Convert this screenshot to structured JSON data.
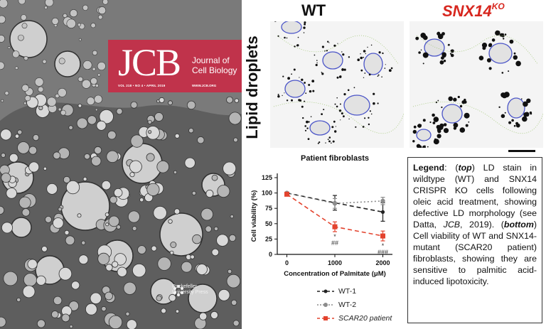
{
  "cover": {
    "logo": "JCB",
    "journal_name": "Journal of Cell Biology",
    "issue": "VOL 218 • NO 4 • APRIL 2019",
    "website": "WWW.JCB.ORG",
    "publisher": "Rockefeller University Press",
    "brand_color": "#c0334b"
  },
  "micrographs": {
    "label_wt": "WT",
    "label_ko": "SNX14",
    "label_ko_sup": "KO",
    "row_label": "Lipid droplets",
    "ko_color": "#d7261e"
  },
  "legend_text": {
    "p1": "Legend",
    "p2": ": (",
    "p3": "top",
    "p4": ") LD stain in wildtype (WT) and SNX14 CRISPR KO cells following oleic acid treatment, showing defective LD morphology (see Datta, ",
    "p5": "JCB",
    "p6": ", 2019). (",
    "p7": "bottom",
    "p8": ") Cell viability of WT and SNX14-mutant (SCAR20 patient) fibroblasts, showing they are sensitive to palmitic acid-induced lipotoxicity."
  },
  "chart_data": {
    "type": "line",
    "title": "Patient fibroblasts",
    "xlabel": "Concentration of Palmitate (μM)",
    "ylabel": "Cell viability (%)",
    "x": [
      0,
      1000,
      2000
    ],
    "x_tick_labels": [
      "0",
      "1000",
      "2000"
    ],
    "y_ticks": [
      0,
      25,
      50,
      75,
      100,
      125
    ],
    "ylim": [
      0,
      125
    ],
    "grid": false,
    "legend_position": "below",
    "series": [
      {
        "name": "WT-1",
        "values": [
          100,
          84,
          69
        ],
        "errors": [
          0,
          12,
          15
        ],
        "color": "#222222",
        "dash": "6,4"
      },
      {
        "name": "WT-2",
        "values": [
          100,
          83,
          87
        ],
        "errors": [
          0,
          8,
          6
        ],
        "color": "#8c8c8c",
        "dash": "2,3"
      },
      {
        "name": "SCAR20 patient",
        "values": [
          98,
          45,
          30
        ],
        "errors": [
          0,
          8,
          8
        ],
        "color": "#e3432e",
        "dash": "6,4",
        "italic": true
      }
    ],
    "annotations": [
      {
        "x": 1000,
        "lines": [
          "*",
          "##"
        ]
      },
      {
        "x": 2000,
        "lines": [
          "*",
          "###"
        ]
      }
    ]
  }
}
